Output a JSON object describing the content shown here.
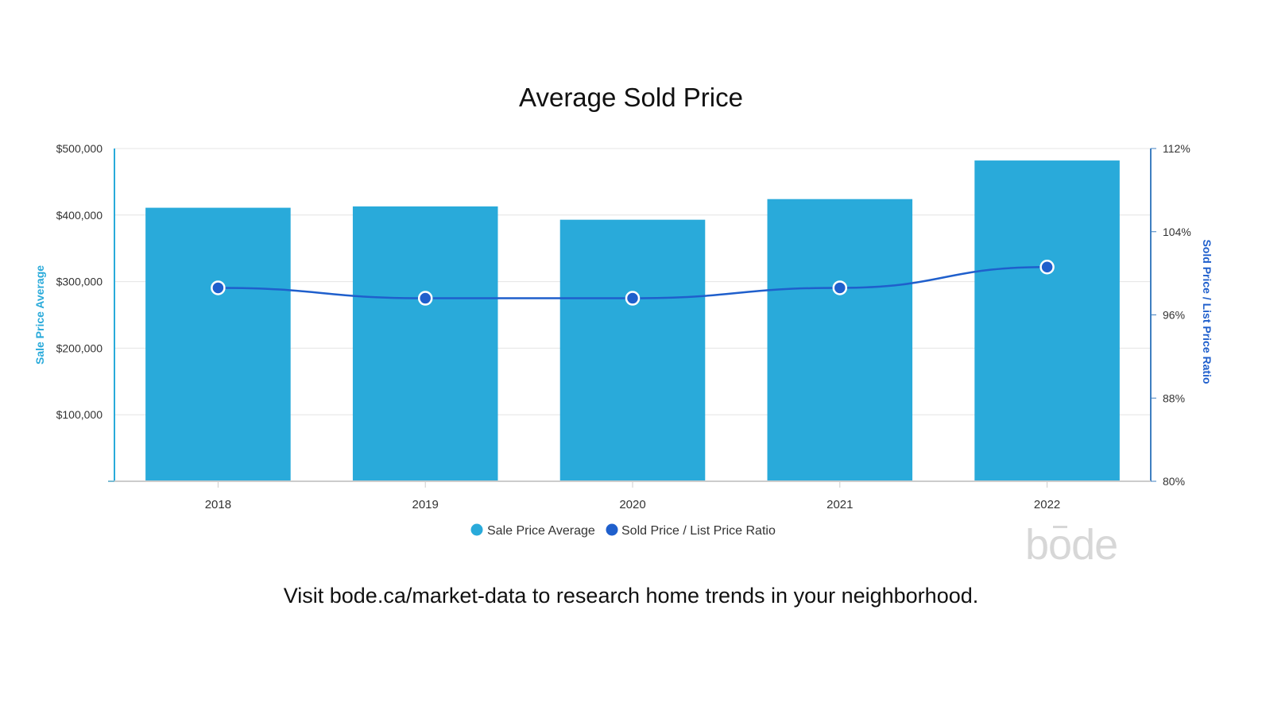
{
  "chart_data": {
    "type": "bar",
    "title": "Average Sold Price",
    "categories": [
      "2018",
      "2019",
      "2020",
      "2021",
      "2022"
    ],
    "series": [
      {
        "name": "Sale Price Average",
        "type": "bar",
        "axis": "left",
        "values": [
          411000,
          413000,
          393000,
          424000,
          482000
        ]
      },
      {
        "name": "Sold Price / List Price Ratio",
        "type": "line",
        "axis": "right",
        "values": [
          98.6,
          97.6,
          97.6,
          98.6,
          100.6
        ]
      }
    ],
    "ylabel": "Sale Price Average",
    "y2label": "Sold Price / List Price Ratio",
    "ylim": [
      0,
      500000
    ],
    "y2lim": [
      80,
      112
    ],
    "y_ticks": [
      "$100,000",
      "$200,000",
      "$300,000",
      "$400,000",
      "$500,000"
    ],
    "y_tick_values": [
      100000,
      200000,
      300000,
      400000,
      500000
    ],
    "y2_ticks": [
      "80%",
      "88%",
      "96%",
      "104%",
      "112%"
    ],
    "y2_tick_values": [
      80,
      88,
      96,
      104,
      112
    ],
    "grid": true,
    "legend": "bottom-center",
    "colors": {
      "bar": "#29aada",
      "line": "#1f5fcc",
      "left_axis": "#29aada",
      "right_axis": "#1f5fcc",
      "grid": "#e4e4e4"
    }
  },
  "footer": {
    "text": "Visit bode.ca/market-data to research home trends in your neighborhood."
  },
  "brand": {
    "logo_text": "bode"
  }
}
